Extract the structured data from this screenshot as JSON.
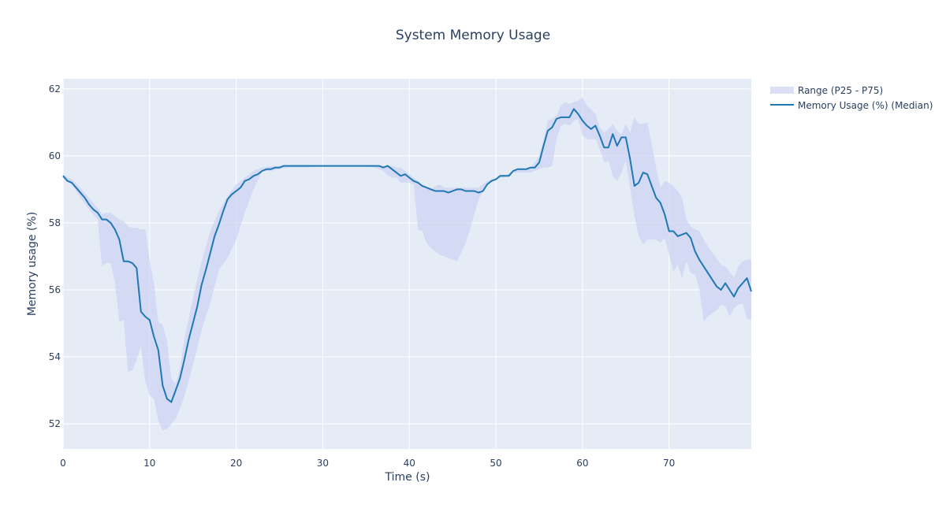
{
  "chart_data": {
    "type": "area",
    "title": "System Memory Usage",
    "xlabel": "Time (s)",
    "ylabel": "Memory usage (%)",
    "xlim": [
      0,
      79.5
    ],
    "ylim": [
      51.25,
      62.3
    ],
    "x_ticks": [
      0,
      10,
      20,
      30,
      40,
      50,
      60,
      70
    ],
    "y_ticks": [
      52,
      54,
      56,
      58,
      60,
      62
    ],
    "grid": true,
    "legend_placement": "top-right, outside plot",
    "colors": {
      "plot_bg": "#e5ecf6",
      "grid": "#ffffff",
      "line": "#1f77b4",
      "band": "#cdd3f2",
      "text": "#2a3f5f"
    },
    "legend": [
      "Range (P25 - P75)",
      "Memory Usage (%) (Median)"
    ],
    "series": [
      {
        "name": "Memory Usage (%) (Median)",
        "kind": "line",
        "x": [
          0,
          0.5,
          1,
          1.5,
          2,
          2.5,
          3,
          3.5,
          4,
          4.5,
          5,
          5.5,
          6,
          6.5,
          7,
          7.5,
          8,
          8.5,
          9,
          9.5,
          10,
          10.5,
          11,
          11.5,
          12,
          12.5,
          13,
          13.5,
          14,
          14.5,
          15,
          15.5,
          16,
          16.5,
          17,
          17.5,
          18,
          18.5,
          19,
          19.5,
          20,
          20.5,
          21,
          21.5,
          22,
          22.5,
          23,
          23.5,
          24,
          24.5,
          25,
          25.5,
          26,
          27,
          28,
          29,
          30,
          31,
          32,
          33,
          34,
          35,
          36,
          36.5,
          37,
          37.5,
          38,
          38.5,
          39,
          39.5,
          40,
          40.5,
          41,
          41.5,
          42,
          42.5,
          43,
          43.5,
          44,
          44.5,
          45,
          45.5,
          46,
          46.5,
          47,
          47.5,
          48,
          48.5,
          49,
          49.5,
          50,
          50.5,
          51,
          51.5,
          52,
          52.5,
          53,
          53.5,
          54,
          54.5,
          55,
          55.5,
          56,
          56.5,
          57,
          57.5,
          58,
          58.5,
          59,
          59.5,
          60,
          60.5,
          61,
          61.5,
          62,
          62.5,
          63,
          63.5,
          64,
          64.5,
          65,
          65.5,
          66,
          66.5,
          67,
          67.5,
          68,
          68.5,
          69,
          69.5,
          70,
          70.5,
          71,
          71.5,
          72,
          72.5,
          73,
          73.5,
          74,
          74.5,
          75,
          75.5,
          76,
          76.5,
          77,
          77.5,
          78,
          78.5,
          79,
          79.5
        ],
        "y": [
          59.4,
          59.25,
          59.2,
          59.05,
          58.9,
          58.75,
          58.55,
          58.4,
          58.3,
          58.1,
          58.1,
          58.0,
          57.8,
          57.5,
          56.85,
          56.85,
          56.8,
          56.65,
          55.35,
          55.2,
          55.1,
          54.6,
          54.2,
          53.15,
          52.75,
          52.65,
          53.0,
          53.35,
          53.9,
          54.5,
          55.0,
          55.5,
          56.15,
          56.6,
          57.1,
          57.6,
          57.95,
          58.35,
          58.7,
          58.85,
          58.95,
          59.05,
          59.25,
          59.3,
          59.4,
          59.45,
          59.55,
          59.6,
          59.6,
          59.65,
          59.65,
          59.7,
          59.7,
          59.7,
          59.7,
          59.7,
          59.7,
          59.7,
          59.7,
          59.7,
          59.7,
          59.7,
          59.7,
          59.7,
          59.65,
          59.7,
          59.6,
          59.5,
          59.4,
          59.45,
          59.35,
          59.25,
          59.2,
          59.1,
          59.05,
          59.0,
          58.95,
          58.95,
          58.95,
          58.9,
          58.95,
          59.0,
          59.0,
          58.95,
          58.95,
          58.95,
          58.9,
          58.95,
          59.15,
          59.25,
          59.3,
          59.4,
          59.4,
          59.4,
          59.55,
          59.6,
          59.6,
          59.6,
          59.65,
          59.65,
          59.8,
          60.3,
          60.75,
          60.85,
          61.1,
          61.15,
          61.15,
          61.15,
          61.4,
          61.25,
          61.05,
          60.9,
          60.8,
          60.9,
          60.6,
          60.25,
          60.25,
          60.65,
          60.3,
          60.55,
          60.55,
          59.9,
          59.1,
          59.2,
          59.5,
          59.45,
          59.1,
          58.75,
          58.6,
          58.25,
          57.75,
          57.75,
          57.6,
          57.65,
          57.7,
          57.55,
          57.15,
          56.9,
          56.7,
          56.5,
          56.3,
          56.1,
          56.0,
          56.2,
          56.0,
          55.8,
          56.05,
          56.2,
          56.35,
          55.95
        ]
      },
      {
        "name": "Range (P25 - P75)",
        "kind": "band",
        "x": [
          0,
          1,
          2,
          3,
          4,
          4.5,
          5,
          5.5,
          6,
          6.5,
          7,
          7.5,
          8,
          8.5,
          9,
          9.5,
          10,
          10.5,
          11,
          11.5,
          12,
          12.5,
          13,
          13.5,
          14,
          15,
          16,
          17,
          18,
          19,
          20,
          21,
          22,
          23,
          24,
          26,
          28,
          30,
          32,
          34,
          36,
          37,
          37.5,
          38,
          38.5,
          39,
          39.5,
          40,
          40.5,
          41,
          41.5,
          42,
          42.5,
          43,
          43.5,
          44,
          44.5,
          45,
          45.5,
          46,
          46.5,
          47,
          48,
          49,
          50,
          51,
          52,
          53,
          54,
          54.5,
          55,
          55.5,
          56,
          56.5,
          57,
          57.5,
          58,
          58.5,
          59,
          59.5,
          60,
          60.5,
          61,
          61.5,
          62,
          62.5,
          63,
          63.5,
          64,
          64.5,
          65,
          65.5,
          66,
          66.5,
          67,
          67.5,
          68,
          68.5,
          69,
          69.5,
          70,
          70.5,
          71,
          71.5,
          72,
          72.5,
          73,
          73.5,
          74,
          74.5,
          75,
          75.5,
          76,
          76.5,
          77,
          77.5,
          78,
          78.5,
          79,
          79.5
        ],
        "low": [
          59.35,
          59.15,
          58.75,
          58.4,
          58.1,
          56.7,
          56.8,
          56.8,
          56.2,
          55.05,
          55.1,
          53.55,
          53.6,
          53.9,
          54.3,
          53.25,
          52.85,
          52.75,
          52.1,
          51.8,
          51.85,
          52.0,
          52.15,
          52.45,
          52.8,
          53.75,
          54.8,
          55.6,
          56.6,
          56.95,
          57.5,
          58.3,
          59.0,
          59.55,
          59.55,
          59.65,
          59.65,
          59.7,
          59.7,
          59.7,
          59.65,
          59.55,
          59.4,
          59.35,
          59.35,
          59.2,
          59.2,
          59.2,
          59.15,
          57.8,
          57.75,
          57.4,
          57.25,
          57.15,
          57.05,
          57.0,
          56.95,
          56.9,
          56.85,
          57.1,
          57.4,
          57.8,
          58.7,
          59.15,
          59.35,
          59.35,
          59.5,
          59.5,
          59.5,
          59.55,
          59.6,
          59.65,
          59.65,
          59.7,
          60.5,
          60.9,
          60.95,
          60.9,
          61.05,
          61.1,
          60.6,
          60.5,
          60.5,
          60.5,
          60.2,
          59.8,
          59.85,
          59.4,
          59.25,
          59.5,
          59.85,
          59.05,
          58.2,
          57.6,
          57.35,
          57.5,
          57.5,
          57.5,
          57.4,
          57.55,
          57.05,
          56.55,
          56.75,
          56.35,
          56.85,
          56.5,
          56.45,
          56.05,
          55.05,
          55.2,
          55.3,
          55.4,
          55.55,
          55.5,
          55.2,
          55.45,
          55.55,
          55.6,
          55.15,
          55.1
        ],
        "high": [
          59.45,
          59.3,
          59.05,
          58.75,
          58.45,
          58.25,
          58.3,
          58.3,
          58.2,
          58.1,
          58.05,
          57.9,
          57.85,
          57.85,
          57.8,
          57.8,
          56.9,
          56.2,
          55.05,
          54.95,
          54.5,
          53.35,
          53.2,
          53.65,
          54.5,
          55.75,
          56.85,
          57.75,
          58.35,
          58.8,
          59.15,
          59.35,
          59.55,
          59.65,
          59.7,
          59.7,
          59.7,
          59.7,
          59.7,
          59.7,
          59.7,
          59.7,
          59.7,
          59.7,
          59.65,
          59.65,
          59.55,
          59.45,
          59.35,
          59.25,
          59.1,
          59.05,
          59.0,
          59.1,
          59.15,
          59.05,
          59.05,
          59.05,
          59.05,
          59.05,
          59.05,
          59.05,
          59.05,
          59.25,
          59.35,
          59.4,
          59.55,
          59.6,
          59.65,
          59.8,
          60.0,
          60.5,
          61.05,
          61.1,
          61.2,
          61.5,
          61.6,
          61.55,
          61.6,
          61.65,
          61.75,
          61.5,
          61.4,
          61.25,
          60.85,
          60.7,
          60.8,
          60.95,
          60.75,
          60.65,
          60.95,
          60.7,
          61.15,
          60.95,
          60.95,
          61.0,
          60.35,
          59.65,
          59.05,
          59.25,
          59.2,
          59.1,
          58.95,
          58.75,
          58.1,
          57.9,
          57.8,
          57.75,
          57.5,
          57.3,
          57.1,
          56.95,
          56.75,
          56.7,
          56.55,
          56.35,
          56.7,
          56.85,
          56.9,
          56.9
        ]
      }
    ]
  }
}
